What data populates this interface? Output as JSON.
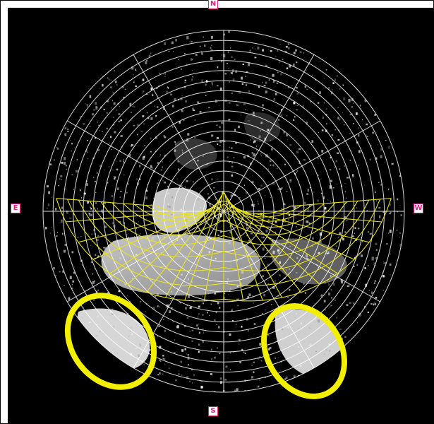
{
  "image": {
    "subject": "hemispherical-sky-photo",
    "compass": {
      "north": "N",
      "east": "E",
      "west": "W",
      "south": "S"
    },
    "colors": {
      "background": "#000000",
      "polar_grid": "#ffffff",
      "sun_path_grid": "#e9e41c",
      "highlight_ellipse": "#f2f000",
      "marker": "#e0217f"
    }
  }
}
